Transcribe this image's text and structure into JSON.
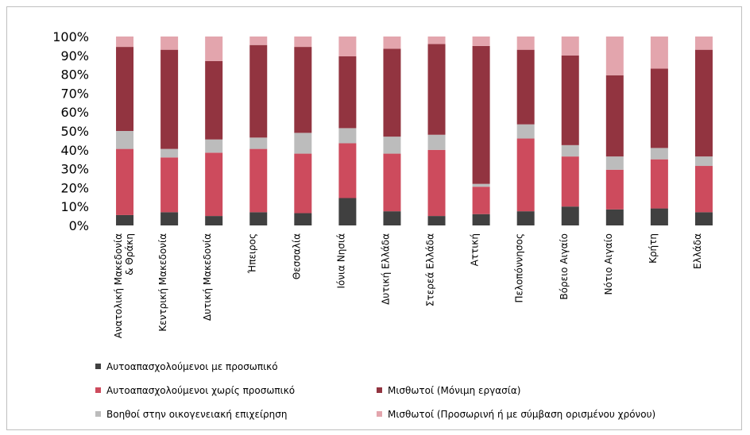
{
  "chart_data": {
    "type": "bar",
    "stacked": true,
    "percent": true,
    "ylim": [
      0,
      100
    ],
    "yticks": [
      "0%",
      "10%",
      "20%",
      "30%",
      "40%",
      "50%",
      "60%",
      "70%",
      "80%",
      "90%",
      "100%"
    ],
    "categories": [
      [
        "Ανατολική Μακεδονία",
        "& Θράκη"
      ],
      [
        "Κεντρική Μακεδονία"
      ],
      [
        "Δυτική Μακεδονία"
      ],
      [
        "Ήπειρος"
      ],
      [
        "Θεσσαλία"
      ],
      [
        "Ιόνια Νησιά"
      ],
      [
        "Δυτική Ελλάδα"
      ],
      [
        "Στερεά Ελλάδα"
      ],
      [
        "Αττική"
      ],
      [
        "Πελοπόννησος"
      ],
      [
        "Βόρειο Αιγαίο"
      ],
      [
        "Νότιο Αιγαίο"
      ],
      [
        "Κρήτη"
      ],
      [
        "Ελλάδα"
      ]
    ],
    "series": [
      {
        "name": "Αυτοαπασχολούμενοι με προσωπικό",
        "color": "#404040",
        "values": [
          5.5,
          7,
          5,
          7,
          6.5,
          14.5,
          7.5,
          5,
          6,
          7.5,
          10,
          8.5,
          9,
          7
        ]
      },
      {
        "name": "Αυτοαπασχολούμενοι χωρίς προσωπικό",
        "color": "#cd4b5d",
        "values": [
          35,
          29,
          33.5,
          33.5,
          31.5,
          29,
          30.5,
          35,
          14.5,
          38.5,
          26.5,
          21,
          26,
          24.5
        ]
      },
      {
        "name": "Βοηθοί στην οικογενειακή επιχείρηση",
        "color": "#bcbcbc",
        "values": [
          9.5,
          4.5,
          7,
          6,
          11,
          8,
          9,
          8,
          1.5,
          7.5,
          6,
          7,
          6,
          5
        ]
      },
      {
        "name": "Μισθωτοί (Μόνιμη εργασία)",
        "color": "#923440",
        "values": [
          44.5,
          52.5,
          41.5,
          49,
          45.5,
          38,
          46.5,
          48,
          73,
          39.5,
          47.5,
          43,
          42,
          56.5
        ]
      },
      {
        "name": "Μισθωτοί (Προσωρινή ή με σύμβαση ορισμένου χρόνου)",
        "color": "#e3a5ad",
        "values": [
          5.5,
          7,
          13,
          4.5,
          5.5,
          10.5,
          6.5,
          4,
          5,
          7,
          10,
          20.5,
          17,
          7
        ]
      }
    ],
    "legend_position": "bottom",
    "legend_order": [
      0,
      1,
      3,
      2,
      4
    ]
  }
}
